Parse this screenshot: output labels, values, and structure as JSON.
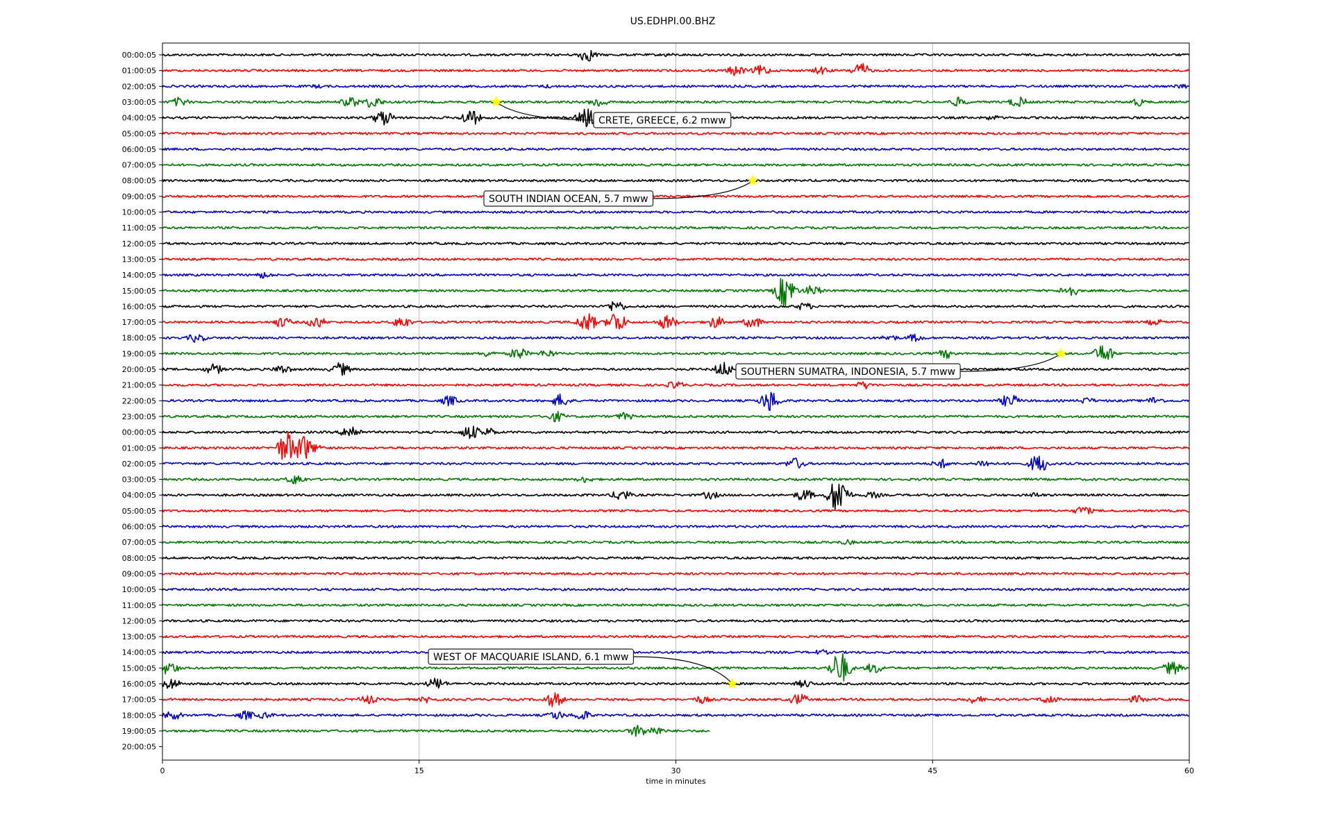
{
  "chart_data": {
    "type": "line",
    "title": "US.EDHPI.00.BHZ",
    "xlabel": "time in minutes",
    "ylabel": "",
    "xlim": [
      0,
      60
    ],
    "xticks": [
      "0",
      "15",
      "30",
      "45",
      "60"
    ],
    "xtick_values": [
      0,
      15,
      30,
      45,
      60
    ],
    "grid_x": true,
    "colors": [
      "#000000",
      "#ff0000",
      "#0000cc",
      "#007700"
    ],
    "highlight_color": "#ffff00",
    "rows": [
      {
        "label": "00:00:05",
        "color": "#000000",
        "end": 60,
        "events": [
          [
            24.8,
            10
          ],
          [
            29.5,
            3
          ]
        ]
      },
      {
        "label": "01:00:05",
        "color": "#ff0000",
        "end": 60,
        "events": [
          [
            33.5,
            8
          ],
          [
            35,
            8
          ],
          [
            38.5,
            6
          ],
          [
            40.8,
            11
          ]
        ]
      },
      {
        "label": "02:00:05",
        "color": "#0000cc",
        "end": 60,
        "events": [
          [
            9,
            3
          ],
          [
            22.5,
            3
          ],
          [
            59.5,
            4
          ]
        ]
      },
      {
        "label": "03:00:05",
        "color": "#007700",
        "end": 60,
        "events": [
          [
            1,
            7
          ],
          [
            11,
            8
          ],
          [
            12.3,
            9
          ],
          [
            25.5,
            8
          ],
          [
            46.5,
            7
          ],
          [
            50,
            8
          ],
          [
            57,
            6
          ]
        ]
      },
      {
        "label": "04:00:05",
        "color": "#000000",
        "end": 60,
        "events": [
          [
            12.9,
            12
          ],
          [
            18,
            12
          ],
          [
            24.8,
            14
          ],
          [
            48.5,
            4
          ]
        ]
      },
      {
        "label": "05:00:05",
        "color": "#ff0000",
        "end": 60,
        "events": []
      },
      {
        "label": "06:00:05",
        "color": "#0000cc",
        "end": 60,
        "events": []
      },
      {
        "label": "07:00:05",
        "color": "#007700",
        "end": 60,
        "events": []
      },
      {
        "label": "08:00:05",
        "color": "#000000",
        "end": 60,
        "events": []
      },
      {
        "label": "09:00:05",
        "color": "#ff0000",
        "end": 60,
        "events": []
      },
      {
        "label": "10:00:05",
        "color": "#0000cc",
        "end": 60,
        "events": []
      },
      {
        "label": "11:00:05",
        "color": "#007700",
        "end": 60,
        "events": []
      },
      {
        "label": "12:00:05",
        "color": "#000000",
        "end": 60,
        "events": []
      },
      {
        "label": "13:00:05",
        "color": "#ff0000",
        "end": 60,
        "events": []
      },
      {
        "label": "14:00:05",
        "color": "#0000cc",
        "end": 60,
        "events": [
          [
            5.9,
            5
          ]
        ]
      },
      {
        "label": "15:00:05",
        "color": "#007700",
        "end": 60,
        "events": [
          [
            36.4,
            24
          ],
          [
            38,
            8
          ],
          [
            53,
            9
          ]
        ]
      },
      {
        "label": "16:00:05",
        "color": "#000000",
        "end": 60,
        "events": [
          [
            26.5,
            9
          ],
          [
            37.5,
            6
          ]
        ]
      },
      {
        "label": "17:00:05",
        "color": "#ff0000",
        "end": 60,
        "events": [
          [
            7,
            8
          ],
          [
            9,
            9
          ],
          [
            14,
            9
          ],
          [
            24.8,
            14
          ],
          [
            26.5,
            16
          ],
          [
            29.5,
            11
          ],
          [
            32.3,
            9
          ],
          [
            34.5,
            9
          ],
          [
            58,
            5
          ]
        ]
      },
      {
        "label": "18:00:05",
        "color": "#0000cc",
        "end": 60,
        "events": [
          [
            2,
            7
          ],
          [
            42.5,
            5
          ],
          [
            44,
            6
          ]
        ]
      },
      {
        "label": "19:00:05",
        "color": "#007700",
        "end": 60,
        "events": [
          [
            19,
            5
          ],
          [
            20.8,
            9
          ],
          [
            22.5,
            6
          ],
          [
            45.8,
            7
          ],
          [
            55,
            14
          ]
        ]
      },
      {
        "label": "20:00:05",
        "color": "#000000",
        "end": 60,
        "events": [
          [
            3,
            8
          ],
          [
            7,
            7
          ],
          [
            10.4,
            10
          ],
          [
            32.8,
            11
          ]
        ]
      },
      {
        "label": "21:00:05",
        "color": "#ff0000",
        "end": 60,
        "events": [
          [
            30,
            6
          ],
          [
            41,
            6
          ]
        ]
      },
      {
        "label": "22:00:05",
        "color": "#0000cc",
        "end": 60,
        "events": [
          [
            16.8,
            8
          ],
          [
            23.3,
            10
          ],
          [
            35.5,
            16
          ],
          [
            49.5,
            10
          ],
          [
            54,
            5
          ],
          [
            58,
            6
          ]
        ]
      },
      {
        "label": "23:00:05",
        "color": "#007700",
        "end": 60,
        "events": [
          [
            23,
            8
          ],
          [
            27,
            6
          ]
        ]
      },
      {
        "label": "00:00:05",
        "color": "#000000",
        "end": 60,
        "events": [
          [
            11,
            11
          ],
          [
            18,
            11
          ],
          [
            19,
            7
          ]
        ]
      },
      {
        "label": "01:00:05",
        "color": "#ff0000",
        "end": 60,
        "events": [
          [
            7.3,
            24
          ],
          [
            8.2,
            20
          ],
          [
            9,
            6
          ]
        ]
      },
      {
        "label": "02:00:05",
        "color": "#0000cc",
        "end": 60,
        "events": [
          [
            37,
            9
          ],
          [
            45.5,
            7
          ],
          [
            48,
            6
          ],
          [
            51.2,
            14
          ]
        ]
      },
      {
        "label": "03:00:05",
        "color": "#007700",
        "end": 60,
        "events": [
          [
            7.8,
            8
          ],
          [
            24.7,
            5
          ]
        ]
      },
      {
        "label": "04:00:05",
        "color": "#000000",
        "end": 60,
        "events": [
          [
            26.8,
            9
          ],
          [
            32,
            6
          ],
          [
            37.5,
            9
          ],
          [
            39.5,
            28
          ],
          [
            41.5,
            5
          ],
          [
            51,
            4
          ]
        ]
      },
      {
        "label": "05:00:05",
        "color": "#ff0000",
        "end": 60,
        "events": [
          [
            53.8,
            7
          ]
        ]
      },
      {
        "label": "06:00:05",
        "color": "#0000cc",
        "end": 60,
        "events": []
      },
      {
        "label": "07:00:05",
        "color": "#007700",
        "end": 60,
        "events": [
          [
            40,
            4
          ]
        ]
      },
      {
        "label": "08:00:05",
        "color": "#000000",
        "end": 60,
        "events": []
      },
      {
        "label": "09:00:05",
        "color": "#ff0000",
        "end": 60,
        "events": []
      },
      {
        "label": "10:00:05",
        "color": "#0000cc",
        "end": 60,
        "events": []
      },
      {
        "label": "11:00:05",
        "color": "#007700",
        "end": 60,
        "events": []
      },
      {
        "label": "12:00:05",
        "color": "#000000",
        "end": 60,
        "events": []
      },
      {
        "label": "13:00:05",
        "color": "#ff0000",
        "end": 60,
        "events": []
      },
      {
        "label": "14:00:05",
        "color": "#0000cc",
        "end": 60,
        "events": [
          [
            38.5,
            4
          ]
        ]
      },
      {
        "label": "15:00:05",
        "color": "#007700",
        "end": 60,
        "events": [
          [
            0.4,
            10
          ],
          [
            39.6,
            24
          ],
          [
            41.6,
            8
          ],
          [
            59,
            10
          ]
        ]
      },
      {
        "label": "16:00:05",
        "color": "#000000",
        "end": 60,
        "events": [
          [
            0.5,
            9
          ],
          [
            16,
            9
          ],
          [
            37.5,
            6
          ]
        ]
      },
      {
        "label": "17:00:05",
        "color": "#ff0000",
        "end": 60,
        "events": [
          [
            12,
            7
          ],
          [
            15.5,
            5
          ],
          [
            22.9,
            11
          ],
          [
            31.5,
            6
          ],
          [
            37.2,
            9
          ],
          [
            47.5,
            6
          ],
          [
            51.8,
            7
          ],
          [
            57,
            6
          ]
        ]
      },
      {
        "label": "18:00:05",
        "color": "#0000cc",
        "end": 60,
        "events": [
          [
            0.6,
            7
          ],
          [
            4.9,
            7
          ],
          [
            6,
            5
          ],
          [
            23,
            7
          ],
          [
            24.5,
            8
          ]
        ]
      },
      {
        "label": "19:00:05",
        "color": "#007700",
        "end": 32,
        "events": [
          [
            27.8,
            9
          ],
          [
            28.8,
            7
          ]
        ]
      },
      {
        "label": "20:00:05",
        "color": "#000000",
        "end": 0,
        "events": []
      }
    ],
    "annotations": [
      {
        "text": "CRETE, GREECE, 6.2 mww",
        "row": 3,
        "x": 19.5
      },
      {
        "text": "SOUTH INDIAN OCEAN, 5.7 mww",
        "row": 8,
        "x": 34.5
      },
      {
        "text": "SOUTHERN SUMATRA, INDONESIA, 5.7 mww",
        "row": 19,
        "x": 52.5
      },
      {
        "text": "WEST OF MACQUARIE ISLAND, 6.1 mww",
        "row": 40,
        "x": 33.3
      }
    ]
  }
}
